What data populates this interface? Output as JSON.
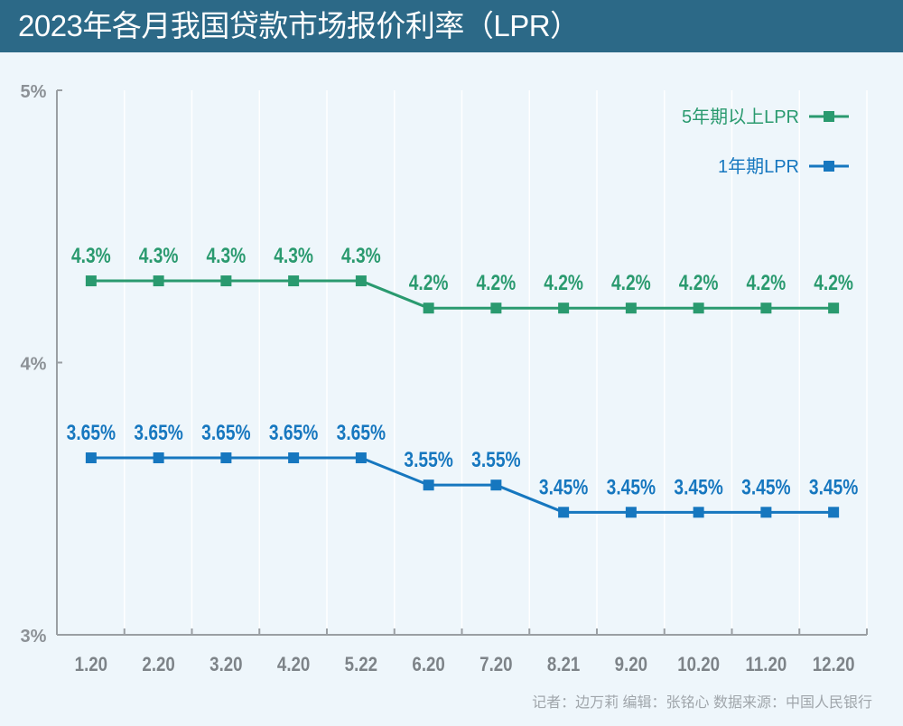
{
  "title": "2023年各月我国贷款市场报价利率（LPR）",
  "credit": "记者：边万莉  编辑：张铭心      数据来源：中国人民银行",
  "chart_data": {
    "type": "line",
    "title": "2023年各月我国贷款市场报价利率（LPR）",
    "categories": [
      "1.20",
      "2.20",
      "3.20",
      "4.20",
      "5.22",
      "6.20",
      "7.20",
      "8.21",
      "9.20",
      "10.20",
      "11.20",
      "12.20"
    ],
    "ylim": [
      3,
      5
    ],
    "yticks": [
      3,
      4,
      5
    ],
    "ytick_labels": [
      "3%",
      "4%",
      "5%"
    ],
    "grid": "vertical",
    "legend_position": "top-right",
    "series": [
      {
        "name": "5年期以上LPR",
        "color": "#2a9a6f",
        "values": [
          4.3,
          4.3,
          4.3,
          4.3,
          4.3,
          4.2,
          4.2,
          4.2,
          4.2,
          4.2,
          4.2,
          4.2
        ],
        "labels": [
          "4.3%",
          "4.3%",
          "4.3%",
          "4.3%",
          "4.3%",
          "4.2%",
          "4.2%",
          "4.2%",
          "4.2%",
          "4.2%",
          "4.2%",
          "4.2%"
        ]
      },
      {
        "name": "1年期LPR",
        "color": "#1677bf",
        "values": [
          3.65,
          3.65,
          3.65,
          3.65,
          3.65,
          3.55,
          3.55,
          3.45,
          3.45,
          3.45,
          3.45,
          3.45
        ],
        "labels": [
          "3.65%",
          "3.65%",
          "3.65%",
          "3.65%",
          "3.65%",
          "3.55%",
          "3.55%",
          "3.45%",
          "3.45%",
          "3.45%",
          "3.45%",
          "3.45%"
        ]
      }
    ]
  },
  "colors": {
    "header": "#2c6987",
    "background": "#eef6fb",
    "axis": "#9a9fa3"
  }
}
